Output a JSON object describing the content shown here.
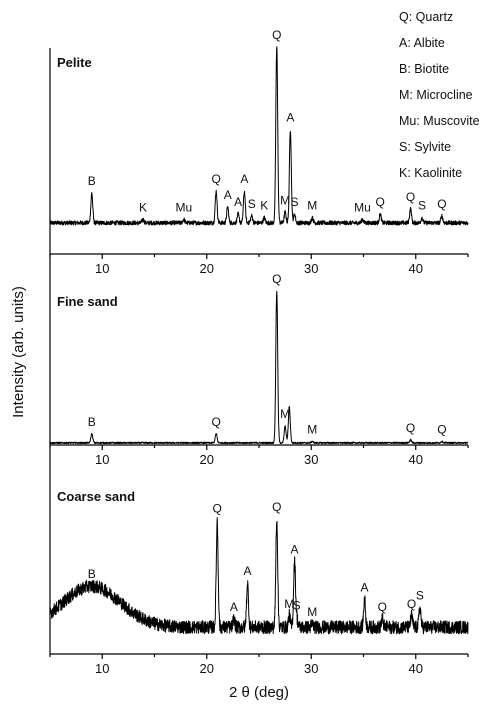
{
  "legend": [
    "Q: Quartz",
    "A: Albite",
    "B: Biotite",
    "M: Microcline",
    "Mu: Muscovite",
    "S: Sylvite",
    "K: Kaolinite"
  ],
  "chart_data": [
    {
      "type": "line",
      "title": "Pelite",
      "xlim": [
        5,
        45
      ],
      "baseline": 0.12,
      "baseline_bumps": [],
      "noise": 0.012,
      "peaks": [
        {
          "x": 9.0,
          "height": 0.17,
          "label": "B"
        },
        {
          "x": 13.9,
          "height": 0.02,
          "label": "K"
        },
        {
          "x": 17.8,
          "height": 0.02,
          "label": "Mu"
        },
        {
          "x": 20.9,
          "height": 0.18,
          "label": "Q"
        },
        {
          "x": 22.0,
          "height": 0.09,
          "label": "A"
        },
        {
          "x": 23.0,
          "height": 0.05,
          "label": "A"
        },
        {
          "x": 23.6,
          "height": 0.18,
          "label": "A"
        },
        {
          "x": 24.3,
          "height": 0.04,
          "label": "S"
        },
        {
          "x": 25.5,
          "height": 0.03,
          "label": "K"
        },
        {
          "x": 26.7,
          "height": 1.0,
          "label": "Q"
        },
        {
          "x": 27.5,
          "height": 0.06,
          "label": "M"
        },
        {
          "x": 28.0,
          "height": 0.53,
          "label": "A"
        },
        {
          "x": 28.4,
          "height": 0.05,
          "label": "S"
        },
        {
          "x": 30.1,
          "height": 0.03,
          "label": "M"
        },
        {
          "x": 34.9,
          "height": 0.02,
          "label": "Mu"
        },
        {
          "x": 36.6,
          "height": 0.05,
          "label": "Q"
        },
        {
          "x": 39.5,
          "height": 0.08,
          "label": "Q"
        },
        {
          "x": 40.6,
          "height": 0.03,
          "label": "S"
        },
        {
          "x": 42.5,
          "height": 0.04,
          "label": "Q"
        }
      ]
    },
    {
      "type": "line",
      "title": "Fine sand",
      "xlim": [
        5,
        45
      ],
      "baseline": 0.06,
      "baseline_bumps": [],
      "noise": 0.005,
      "peaks": [
        {
          "x": 9.0,
          "height": 0.06,
          "label": "B"
        },
        {
          "x": 20.9,
          "height": 0.06,
          "label": "Q"
        },
        {
          "x": 26.7,
          "height": 1.0,
          "label": "Q"
        },
        {
          "x": 27.5,
          "height": 0.11,
          "label": "M"
        },
        {
          "x": 27.9,
          "height": 0.24,
          "label": ""
        },
        {
          "x": 30.1,
          "height": 0.01,
          "label": "M"
        },
        {
          "x": 39.5,
          "height": 0.02,
          "label": "Q"
        },
        {
          "x": 42.5,
          "height": 0.01,
          "label": "Q"
        }
      ]
    },
    {
      "type": "line",
      "title": "Coarse sand",
      "xlim": [
        5,
        45
      ],
      "baseline": 0.09,
      "baseline_bumps": [
        {
          "x": 9.0,
          "width": 5.5,
          "height": 0.25
        }
      ],
      "noise": 0.04,
      "peaks": [
        {
          "x": 9.0,
          "height": 0.0,
          "label": "B"
        },
        {
          "x": 21.0,
          "height": 0.65,
          "label": "Q"
        },
        {
          "x": 22.6,
          "height": 0.05,
          "label": "A"
        },
        {
          "x": 23.9,
          "height": 0.27,
          "label": "A"
        },
        {
          "x": 26.7,
          "height": 0.66,
          "label": "Q"
        },
        {
          "x": 27.9,
          "height": 0.07,
          "label": "M"
        },
        {
          "x": 28.4,
          "height": 0.4,
          "label": "A"
        },
        {
          "x": 28.6,
          "height": 0.06,
          "label": "S"
        },
        {
          "x": 30.1,
          "height": 0.02,
          "label": "M"
        },
        {
          "x": 35.1,
          "height": 0.17,
          "label": "A"
        },
        {
          "x": 36.8,
          "height": 0.05,
          "label": "Q"
        },
        {
          "x": 39.6,
          "height": 0.07,
          "label": "Q"
        },
        {
          "x": 40.4,
          "height": 0.12,
          "label": "S"
        }
      ]
    }
  ],
  "axes": {
    "x_ticks": [
      10,
      20,
      30,
      40
    ],
    "x_title": "2 θ (deg)",
    "y_title": "Intensity (arb. units)"
  }
}
